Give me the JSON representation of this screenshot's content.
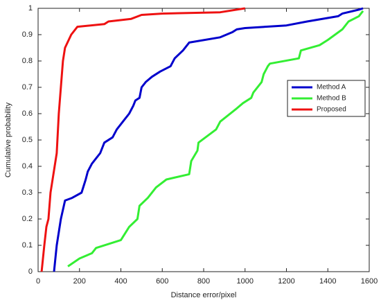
{
  "chart_data": {
    "type": "line",
    "xlabel": "Distance error/pixel",
    "ylabel": "Cumulative probability",
    "xlim": [
      0,
      1600
    ],
    "xticks": [
      0,
      200,
      400,
      600,
      800,
      1000,
      1200,
      1400,
      1600
    ],
    "ylim": [
      0,
      1
    ],
    "yticks": [
      0,
      0.1,
      0.2,
      0.3,
      0.4,
      0.5,
      0.6,
      0.7,
      0.8,
      0.9,
      1
    ],
    "grid": false,
    "legend": "right",
    "series": [
      {
        "name": "Method A",
        "color": "#0000cc",
        "x": [
          77,
          90,
          110,
          130,
          164,
          210,
          230,
          240,
          260,
          280,
          300,
          320,
          360,
          380,
          400,
          420,
          440,
          460,
          470,
          490,
          500,
          520,
          550,
          590,
          640,
          660,
          700,
          730,
          880,
          940,
          960,
          1000,
          1200,
          1300,
          1450,
          1470,
          1550,
          1570
        ],
        "values": [
          0,
          0.1,
          0.2,
          0.27,
          0.28,
          0.3,
          0.35,
          0.38,
          0.41,
          0.43,
          0.45,
          0.49,
          0.51,
          0.54,
          0.56,
          0.58,
          0.6,
          0.63,
          0.65,
          0.66,
          0.7,
          0.72,
          0.74,
          0.76,
          0.78,
          0.81,
          0.84,
          0.87,
          0.89,
          0.91,
          0.92,
          0.925,
          0.935,
          0.95,
          0.97,
          0.98,
          0.995,
          1
        ]
      },
      {
        "name": "Method B",
        "color": "#33ee33",
        "x": [
          144,
          200,
          260,
          280,
          400,
          440,
          480,
          490,
          530,
          570,
          620,
          730,
          740,
          770,
          775,
          860,
          880,
          960,
          990,
          1030,
          1040,
          1080,
          1090,
          1110,
          1120,
          1260,
          1270,
          1360,
          1400,
          1470,
          1500,
          1550,
          1570
        ],
        "values": [
          0.02,
          0.05,
          0.07,
          0.09,
          0.12,
          0.17,
          0.2,
          0.25,
          0.28,
          0.32,
          0.35,
          0.37,
          0.42,
          0.46,
          0.49,
          0.54,
          0.57,
          0.62,
          0.64,
          0.66,
          0.68,
          0.72,
          0.75,
          0.78,
          0.79,
          0.81,
          0.84,
          0.86,
          0.88,
          0.92,
          0.95,
          0.97,
          0.99
        ]
      },
      {
        "name": "Proposed",
        "color": "#ee1111",
        "x": [
          17,
          30,
          40,
          50,
          60,
          70,
          80,
          90,
          100,
          110,
          120,
          130,
          160,
          190,
          320,
          340,
          450,
          500,
          600,
          880,
          1000
        ],
        "values": [
          0,
          0.1,
          0.17,
          0.2,
          0.3,
          0.35,
          0.4,
          0.45,
          0.6,
          0.7,
          0.8,
          0.85,
          0.9,
          0.93,
          0.94,
          0.95,
          0.96,
          0.975,
          0.98,
          0.985,
          1
        ]
      }
    ]
  }
}
